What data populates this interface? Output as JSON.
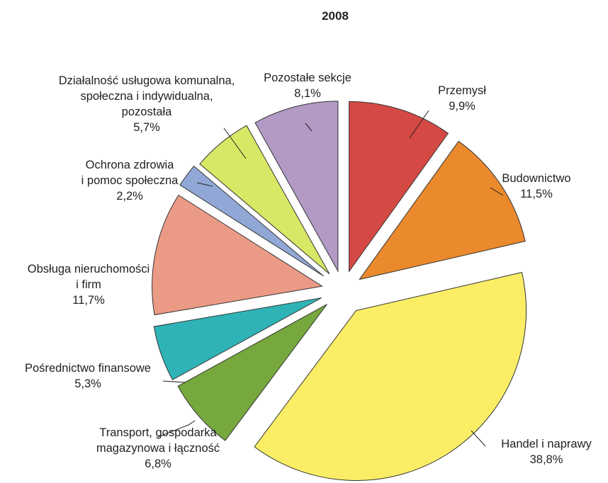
{
  "chart_data": {
    "type": "pie",
    "title": "2008",
    "exploded": true,
    "slices": [
      {
        "label_lines": [
          "Przemysł",
          "9,9%"
        ],
        "value": 9.9,
        "color": "#d54944"
      },
      {
        "label_lines": [
          "Budownictwo",
          "11,5%"
        ],
        "value": 11.5,
        "color": "#ea8a2d"
      },
      {
        "label_lines": [
          "Handel i naprawy",
          "38,8%"
        ],
        "value": 38.8,
        "color": "#fbee66"
      },
      {
        "label_lines": [
          "Transport, gospodarka",
          "magazynowa i łączność",
          "6,8%"
        ],
        "value": 6.8,
        "color": "#76a83e"
      },
      {
        "label_lines": [
          "Pośrednictwo finansowe",
          "5,3%"
        ],
        "value": 5.3,
        "color": "#2fb3b6"
      },
      {
        "label_lines": [
          "Obsługa nieruchomości",
          "i firm",
          "11,7%"
        ],
        "value": 11.7,
        "color": "#eb9b85"
      },
      {
        "label_lines": [
          "Ochrona zdrowia",
          "i pomoc społeczna",
          "2,2%"
        ],
        "value": 2.2,
        "color": "#91a8d6"
      },
      {
        "label_lines": [
          "Działalność usługowa komunalna,",
          "społeczna i indywidualna,",
          "pozostała",
          "5,7%"
        ],
        "value": 5.7,
        "color": "#d8e765"
      },
      {
        "label_lines": [
          "Pozostałe sekcje",
          "8,1%"
        ],
        "value": 8.1,
        "color": "#b29ac5"
      }
    ]
  }
}
